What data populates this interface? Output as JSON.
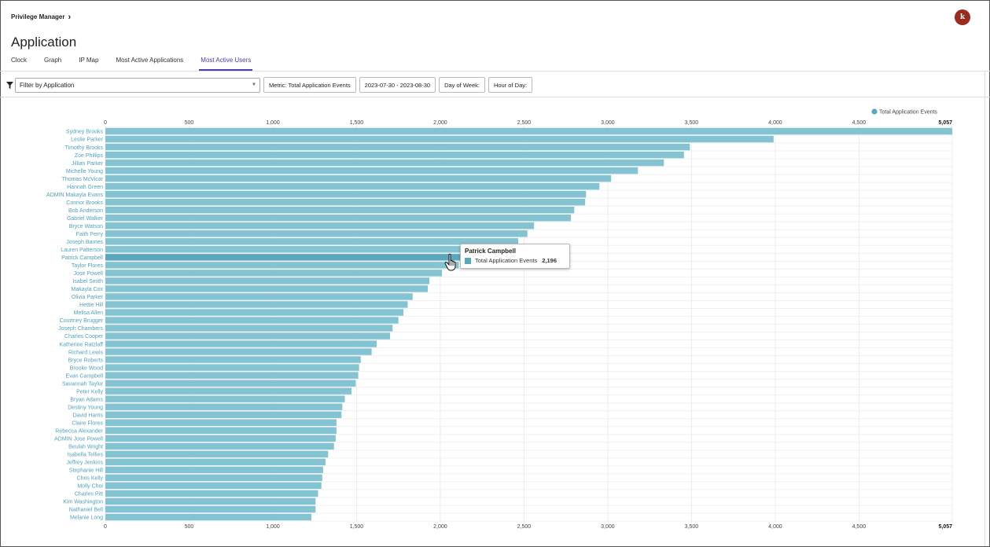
{
  "header": {
    "breadcrumb": "Privilege Manager",
    "avatar_initial": "k",
    "page_title": "Application"
  },
  "tabs": [
    {
      "label": "Clock",
      "active": false
    },
    {
      "label": "Graph",
      "active": false
    },
    {
      "label": "IP Map",
      "active": false
    },
    {
      "label": "Most Active Applications",
      "active": false
    },
    {
      "label": "Most Active Users",
      "active": true
    }
  ],
  "toolbar": {
    "filter_value": "Filter by Application",
    "metric_label": "Metric: Total Application Events",
    "date_range": "2023-07-30 - 2023-08-30",
    "day_of_week": "Day of Week:",
    "hour_of_day": "Hour of Day:"
  },
  "tooltip": {
    "title": "Patrick Campbell",
    "series": "Total Application Events",
    "value": "2,196"
  },
  "colors": {
    "bar": "#84c3d1",
    "bar_highlight": "#5aa7bf",
    "label": "#4fa3bd",
    "accent": "#4a3cb0",
    "avatar": "#9b2a1f"
  },
  "chart_data": {
    "type": "bar",
    "orientation": "horizontal",
    "legend": {
      "label": "Total Application Events",
      "position": "top-right"
    },
    "x_ticks": [
      "0",
      "500",
      "1,000",
      "1,500",
      "2,000",
      "2,500",
      "3,000",
      "3,500",
      "4,000",
      "4,500",
      "5,057"
    ],
    "xlim": [
      0,
      5057
    ],
    "grid": true,
    "highlighted": "Patrick Campbell",
    "categories": [
      "Sydney Brooks",
      "Leslie Parker",
      "Timothy Brooks",
      "Zoe Phillips",
      "Jillian Parker",
      "Michelle Young",
      "Thomas McVicar",
      "Hannah Green",
      "ADMIN Makayla Evans",
      "Connor Brooks",
      "Bob Anderson",
      "Gabriel Walker",
      "Bryce Watson",
      "Faith Perry",
      "Joseph Barnes",
      "Lauren Patterson",
      "Patrick Campbell",
      "Taylor Flores",
      "Jose Powell",
      "Isabel Smith",
      "Makayla Cox",
      "Olivia Parker",
      "Hettie Hill",
      "Melisa Allen",
      "Courtney Brugger",
      "Joseph Chambers",
      "Charles Cooper",
      "Katherine Ratzlaff",
      "Richard Lewis",
      "Bryce Roberts",
      "Brooke Wood",
      "Evan Campbell",
      "Savannah Taylor",
      "Peter Kelly",
      "Bryan Adams",
      "Destiny Young",
      "David Harris",
      "Claire Flores",
      "Rebecca Alexander",
      "ADMIN Jose Powell",
      "Beulah Wright",
      "Isabella Tellies",
      "Jeffrey Jenkins",
      "Stephanie Hill",
      "Chris Kelly",
      "Molly Choi",
      "Charles Pitt",
      "Kim Washington",
      "Nathaniel Bell",
      "Melanie Long"
    ],
    "values": [
      5057,
      3990,
      3490,
      3455,
      3335,
      3180,
      3020,
      2950,
      2870,
      2865,
      2800,
      2780,
      2560,
      2520,
      2465,
      2285,
      2196,
      2110,
      2010,
      1935,
      1925,
      1835,
      1805,
      1780,
      1750,
      1715,
      1700,
      1620,
      1590,
      1525,
      1515,
      1510,
      1495,
      1470,
      1430,
      1415,
      1410,
      1380,
      1380,
      1375,
      1365,
      1330,
      1315,
      1300,
      1295,
      1290,
      1270,
      1255,
      1255,
      1230
    ]
  }
}
